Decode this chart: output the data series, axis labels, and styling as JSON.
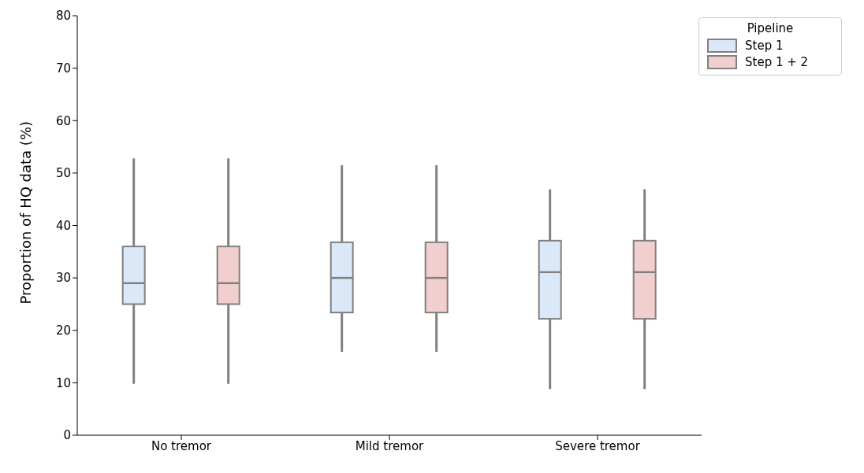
{
  "chart_data": {
    "type": "box",
    "ylabel": "Proportion of HQ data (%)",
    "legend_title": "Pipeline",
    "legend": "top right",
    "categories": [
      "No tremor",
      "Mild tremor",
      "Severe tremor"
    ],
    "ylim": [
      0,
      80
    ],
    "yticks": [
      0,
      10,
      20,
      30,
      40,
      50,
      60,
      70,
      80
    ],
    "grid": false,
    "series": [
      {
        "name": "Step 1",
        "color": "#dae8f8",
        "boxes": [
          {
            "low": 9.8,
            "q1": 25,
            "median": 29,
            "q3": 36,
            "high": 52.8
          },
          {
            "low": 15.9,
            "q1": 23.4,
            "median": 30,
            "q3": 36.8,
            "high": 51.5
          },
          {
            "low": 8.8,
            "q1": 22.2,
            "median": 31.1,
            "q3": 37.1,
            "high": 46.9
          }
        ]
      },
      {
        "name": "Step 1 + 2",
        "color": "#f2cfcf",
        "boxes": [
          {
            "low": 9.8,
            "q1": 25,
            "median": 29,
            "q3": 36,
            "high": 52.8
          },
          {
            "low": 15.9,
            "q1": 23.4,
            "median": 30,
            "q3": 36.8,
            "high": 51.5
          },
          {
            "low": 8.8,
            "q1": 22.2,
            "median": 31.1,
            "q3": 37.1,
            "high": 46.9
          }
        ]
      }
    ]
  }
}
